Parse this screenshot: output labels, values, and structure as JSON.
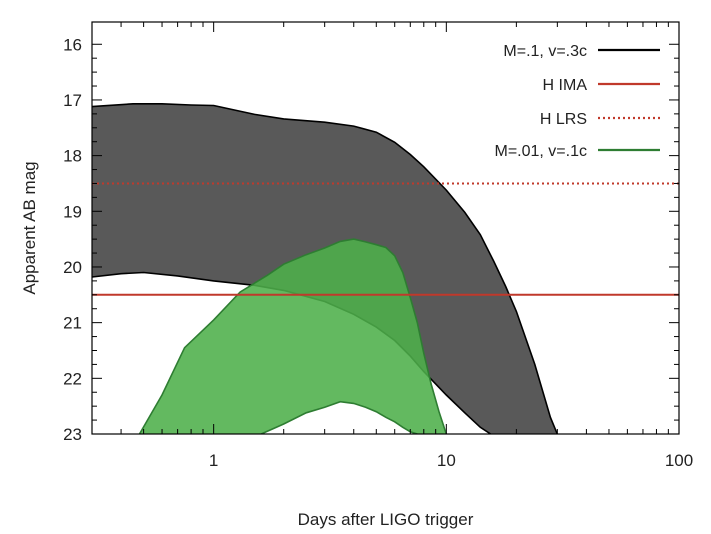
{
  "chart_data": {
    "type": "area",
    "xscale": "log",
    "xlim": [
      0.3,
      100
    ],
    "ylim": [
      23,
      15.6
    ],
    "y_inverted": true,
    "xlabel": "Days after LIGO trigger",
    "ylabel": "Apparent AB mag",
    "x_ticks": [
      1,
      10,
      100
    ],
    "x_tick_labels": [
      "1",
      "10",
      "100"
    ],
    "y_ticks": [
      16,
      17,
      18,
      19,
      20,
      21,
      22,
      23
    ],
    "y_tick_labels": [
      "16",
      "17",
      "18",
      "19",
      "20",
      "21",
      "22",
      "23"
    ],
    "legend_position": "top-right",
    "colors": {
      "band_fill": "#595959",
      "band_edge": "#000000",
      "green_fill": "#4daf4a",
      "green_edge": "#2e7d32",
      "line_red": "#c0392b",
      "line_red_dotted": "#c0392b"
    },
    "series": [
      {
        "name": "M=.1, v=.3c",
        "kind": "band",
        "upper": {
          "x": [
            0.3,
            0.45,
            0.6,
            0.8,
            1.0,
            1.5,
            2.0,
            3.0,
            4.0,
            5.0,
            6.0,
            7.0,
            8.0,
            10.0,
            12.0,
            14.0,
            16.0,
            18.0,
            20.0,
            24.0,
            28.0,
            30.0
          ],
          "y": [
            17.12,
            17.07,
            17.07,
            17.09,
            17.1,
            17.26,
            17.34,
            17.4,
            17.47,
            17.58,
            17.76,
            17.98,
            18.2,
            18.62,
            19.02,
            19.42,
            19.9,
            20.35,
            20.8,
            21.75,
            22.7,
            23.0
          ]
        },
        "lower": {
          "x": [
            0.3,
            0.4,
            0.5,
            0.7,
            1.0,
            1.5,
            2.0,
            3.0,
            4.0,
            5.0,
            6.0,
            7.0,
            8.0,
            10.0,
            12.0,
            14.0,
            15.5
          ],
          "y": [
            20.18,
            20.12,
            20.1,
            20.16,
            20.25,
            20.33,
            20.42,
            20.62,
            20.85,
            21.08,
            21.32,
            21.6,
            21.88,
            22.3,
            22.62,
            22.88,
            23.0
          ]
        }
      },
      {
        "name": "H IMA",
        "kind": "hline",
        "y": 20.5
      },
      {
        "name": "H LRS",
        "kind": "hline",
        "style": "dotted",
        "y": 18.5
      },
      {
        "name": "M=.01, v=.1c",
        "kind": "band",
        "upper": {
          "x": [
            0.48,
            0.6,
            0.75,
            1.0,
            1.3,
            1.7,
            2.0,
            2.5,
            3.0,
            3.5,
            4.0,
            4.5,
            5.0,
            5.5,
            6.0,
            6.5,
            7.0,
            7.5,
            8.0,
            8.6,
            9.3,
            10.0
          ],
          "y": [
            23.0,
            22.3,
            21.45,
            20.95,
            20.45,
            20.15,
            19.95,
            19.78,
            19.66,
            19.54,
            19.5,
            19.55,
            19.6,
            19.65,
            19.8,
            20.1,
            20.55,
            21.0,
            21.55,
            22.1,
            22.6,
            23.0
          ]
        },
        "lower": {
          "x": [
            1.6,
            2.0,
            2.5,
            3.0,
            3.5,
            4.0,
            4.5,
            5.0,
            5.5,
            6.0,
            6.5,
            7.0,
            7.5
          ],
          "y": [
            23.0,
            22.82,
            22.62,
            22.52,
            22.42,
            22.45,
            22.52,
            22.6,
            22.7,
            22.78,
            22.88,
            22.96,
            23.0
          ]
        }
      }
    ],
    "legend": [
      {
        "label": "M=.1, v=.3c",
        "style": "solid",
        "color": "#000000"
      },
      {
        "label": "H IMA",
        "style": "solid",
        "color": "#c0392b"
      },
      {
        "label": "H LRS",
        "style": "dotted",
        "color": "#c0392b"
      },
      {
        "label": "M=.01, v=.1c",
        "style": "solid",
        "color": "#2e7d32"
      }
    ]
  }
}
